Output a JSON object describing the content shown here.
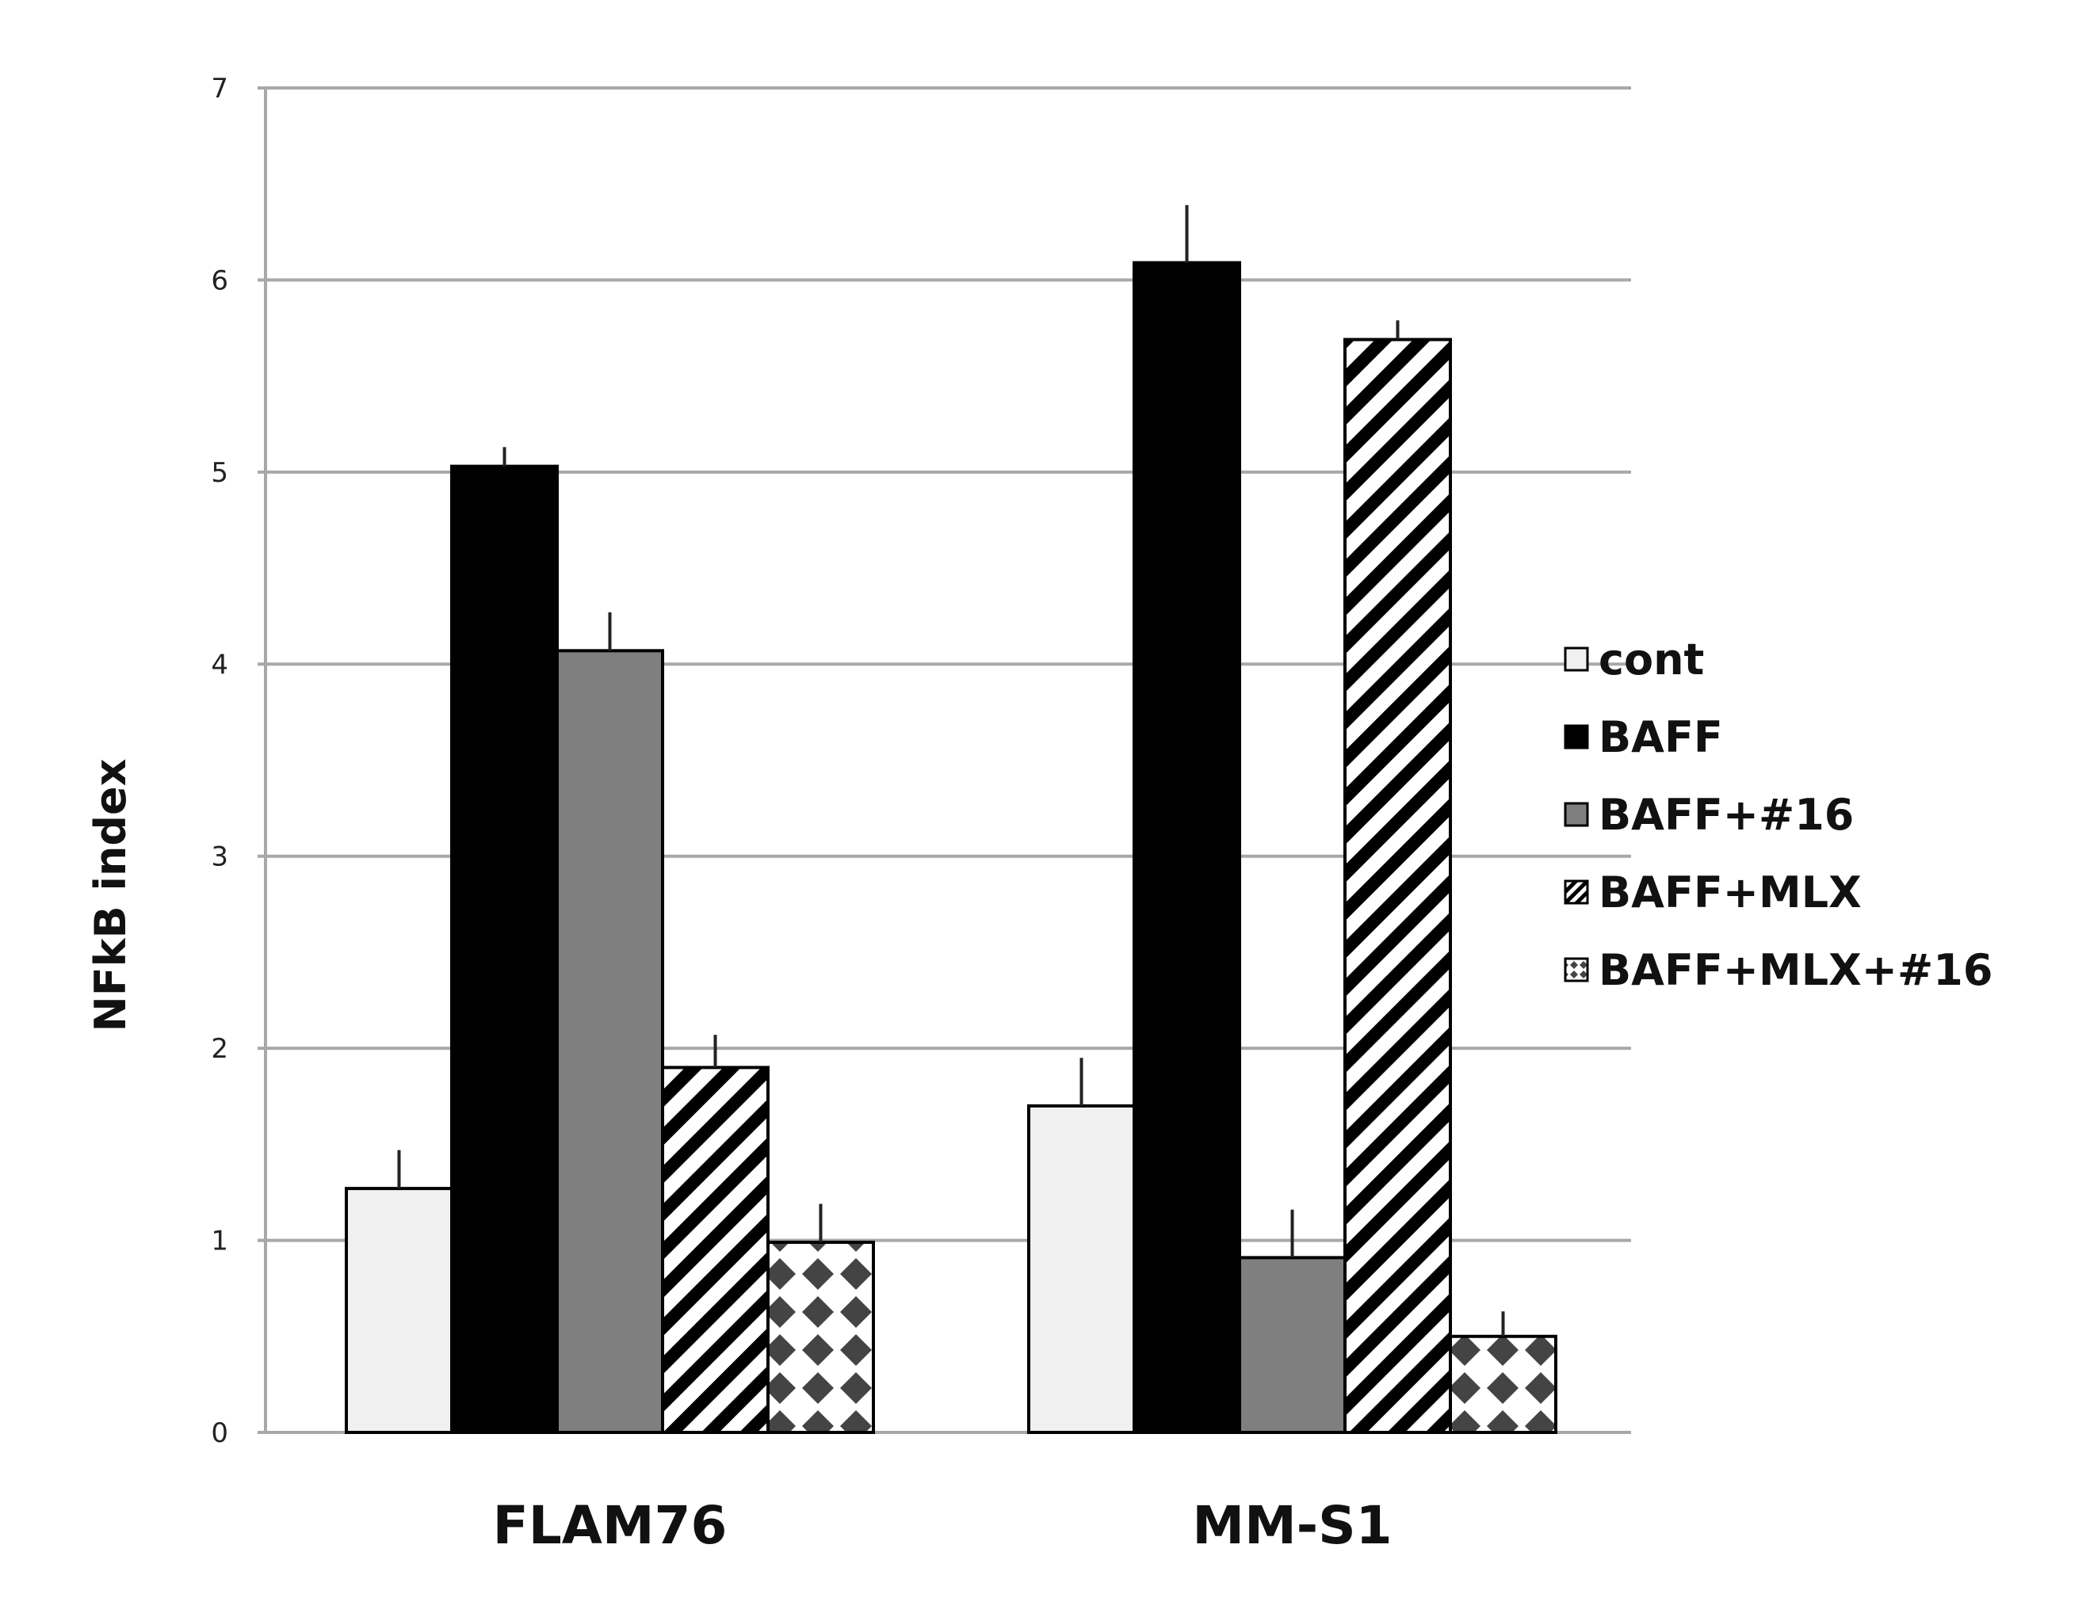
{
  "chart_data": {
    "type": "bar",
    "title": "",
    "xlabel": "",
    "ylabel": "NFkB index",
    "ylim": [
      0,
      7
    ],
    "yticks": [
      0,
      1,
      2,
      3,
      4,
      5,
      6,
      7
    ],
    "grid": true,
    "legend_position": "right",
    "categories": [
      "FLAM76",
      "MM-S1"
    ],
    "series": [
      {
        "name": "cont",
        "values": [
          1.27,
          1.7
        ],
        "errors": [
          0.2,
          0.25
        ],
        "pattern": "solid",
        "color": "#f0f0f0"
      },
      {
        "name": "BAFF",
        "values": [
          5.03,
          6.09
        ],
        "errors": [
          0.1,
          0.3
        ],
        "pattern": "solid",
        "color": "#000000"
      },
      {
        "name": "BAFF+#16",
        "values": [
          4.07,
          0.91
        ],
        "errors": [
          0.2,
          0.25
        ],
        "pattern": "solid",
        "color": "#7f7f7f"
      },
      {
        "name": "BAFF+MLX",
        "values": [
          1.9,
          5.69
        ],
        "errors": [
          0.17,
          0.1
        ],
        "pattern": "diagonal-stripes",
        "color": "#000000"
      },
      {
        "name": "BAFF+MLX+#16",
        "values": [
          0.99,
          0.5
        ],
        "errors": [
          0.2,
          0.13
        ],
        "pattern": "diamond-checker",
        "color": "#444444"
      }
    ]
  }
}
